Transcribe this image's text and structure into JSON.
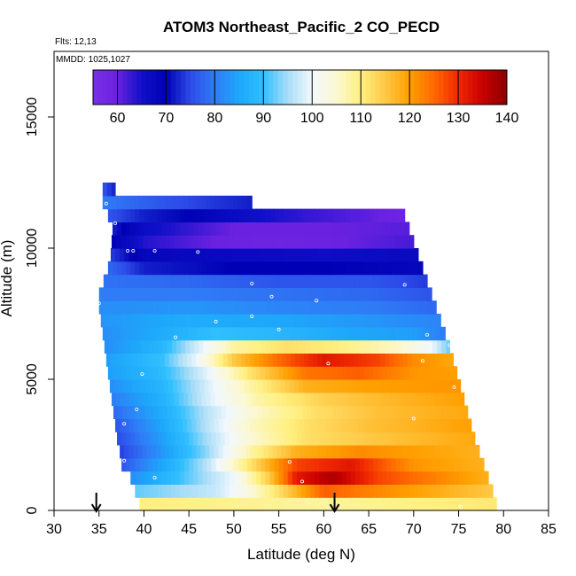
{
  "chart_data": {
    "type": "heatmap",
    "title": "ATOM3 Northeast_Pacific_2 CO_PECD",
    "flights_note": "Flts: 12,13",
    "dates_note": "MMDD: 1025,1027",
    "xlabel": "Latitude (deg N)",
    "ylabel": "Altitude (m)",
    "xlim": [
      30,
      85
    ],
    "ylim": [
      0,
      17500
    ],
    "x_ticks": [
      30,
      35,
      40,
      45,
      50,
      55,
      60,
      65,
      70,
      75,
      80,
      85
    ],
    "y_ticks": [
      0,
      5000,
      10000,
      15000
    ],
    "colorbar": {
      "min": 55,
      "max": 140,
      "ticks": [
        60,
        70,
        80,
        90,
        100,
        110,
        120,
        130,
        140
      ],
      "stops": [
        {
          "v": 55,
          "c": "#7a2fe6"
        },
        {
          "v": 60,
          "c": "#6a22e0"
        },
        {
          "v": 65,
          "c": "#1010c8"
        },
        {
          "v": 70,
          "c": "#0000b4"
        },
        {
          "v": 75,
          "c": "#2d4be8"
        },
        {
          "v": 80,
          "c": "#2f7cf6"
        },
        {
          "v": 85,
          "c": "#1ea7fa"
        },
        {
          "v": 90,
          "c": "#30bfff"
        },
        {
          "v": 95,
          "c": "#a9ddf7"
        },
        {
          "v": 100,
          "c": "#f2f8fd"
        },
        {
          "v": 105,
          "c": "#fbf8d2"
        },
        {
          "v": 110,
          "c": "#fff080"
        },
        {
          "v": 115,
          "c": "#ffc845"
        },
        {
          "v": 120,
          "c": "#ffa000"
        },
        {
          "v": 125,
          "c": "#ff6a00"
        },
        {
          "v": 130,
          "c": "#f02800"
        },
        {
          "v": 135,
          "c": "#c80000"
        },
        {
          "v": 140,
          "c": "#8b0000"
        }
      ]
    },
    "arrows_latitude": [
      34.7,
      61.2
    ],
    "bands": [
      {
        "alt": [
          0,
          500
        ],
        "lat": [
          39.5,
          79.2
        ],
        "pts": [
          [
            39.5,
            110
          ],
          [
            60,
            108
          ],
          [
            79.2,
            111
          ]
        ]
      },
      {
        "alt": [
          500,
          1000
        ],
        "lat": [
          39.0,
          78.8
        ],
        "pts": [
          [
            39,
            92
          ],
          [
            48,
            97
          ],
          [
            51,
            102
          ],
          [
            55,
            112
          ],
          [
            60,
            126
          ],
          [
            68,
            121
          ],
          [
            78.8,
            115
          ]
        ]
      },
      {
        "alt": [
          1000,
          1500
        ],
        "lat": [
          38.5,
          78.3
        ],
        "pts": [
          [
            38.5,
            82
          ],
          [
            45,
            92
          ],
          [
            50,
            100
          ],
          [
            54,
            115
          ],
          [
            57,
            132
          ],
          [
            61,
            137
          ],
          [
            66,
            128
          ],
          [
            78.3,
            118
          ]
        ]
      },
      {
        "alt": [
          1500,
          2000
        ],
        "lat": [
          37.5,
          77.8
        ],
        "pts": [
          [
            37.5,
            76
          ],
          [
            42,
            85
          ],
          [
            47,
            96
          ],
          [
            52,
            112
          ],
          [
            57,
            128
          ],
          [
            63,
            132
          ],
          [
            70,
            121
          ],
          [
            77.8,
            118
          ]
        ]
      },
      {
        "alt": [
          2000,
          2500
        ],
        "lat": [
          37.3,
          77.3
        ],
        "pts": [
          [
            37.3,
            74
          ],
          [
            42,
            83
          ],
          [
            47,
            94
          ],
          [
            52,
            108
          ],
          [
            57,
            118
          ],
          [
            64,
            122
          ],
          [
            70,
            120
          ],
          [
            77.3,
            118
          ]
        ]
      },
      {
        "alt": [
          2500,
          3000
        ],
        "lat": [
          37.0,
          76.8
        ],
        "pts": [
          [
            37,
            75
          ],
          [
            42,
            84
          ],
          [
            47,
            95
          ],
          [
            52,
            105
          ],
          [
            58,
            112
          ],
          [
            65,
            115
          ],
          [
            71,
            117
          ],
          [
            76.8,
            119
          ]
        ]
      },
      {
        "alt": [
          3000,
          3500
        ],
        "lat": [
          36.8,
          76.4
        ],
        "pts": [
          [
            36.8,
            76
          ],
          [
            42,
            85
          ],
          [
            47,
            96
          ],
          [
            52,
            106
          ],
          [
            58,
            112
          ],
          [
            65,
            116
          ],
          [
            71,
            118
          ],
          [
            76.4,
            120
          ]
        ]
      },
      {
        "alt": [
          3500,
          4000
        ],
        "lat": [
          36.6,
          76.0
        ],
        "pts": [
          [
            36.6,
            78
          ],
          [
            42,
            86
          ],
          [
            47,
            96
          ],
          [
            53,
            106
          ],
          [
            59,
            112
          ],
          [
            66,
            116
          ],
          [
            76,
            119
          ]
        ]
      },
      {
        "alt": [
          4000,
          4500
        ],
        "lat": [
          36.4,
          75.6
        ],
        "pts": [
          [
            36.4,
            80
          ],
          [
            42,
            87
          ],
          [
            47,
            98
          ],
          [
            53,
            108
          ],
          [
            60,
            114
          ],
          [
            67,
            117
          ],
          [
            75.6,
            120
          ]
        ]
      },
      {
        "alt": [
          4500,
          5000
        ],
        "lat": [
          36.2,
          75.2
        ],
        "pts": [
          [
            36.2,
            82
          ],
          [
            42,
            88
          ],
          [
            47,
            98
          ],
          [
            52,
            108
          ],
          [
            58,
            118
          ],
          [
            65,
            120
          ],
          [
            75.2,
            121
          ]
        ]
      },
      {
        "alt": [
          5000,
          5500
        ],
        "lat": [
          36.0,
          74.8
        ],
        "pts": [
          [
            36,
            84
          ],
          [
            42,
            89
          ],
          [
            47,
            99
          ],
          [
            52,
            112
          ],
          [
            58,
            124
          ],
          [
            64,
            126
          ],
          [
            70,
            121
          ],
          [
            74.8,
            120
          ]
        ]
      },
      {
        "alt": [
          5500,
          6000
        ],
        "lat": [
          35.8,
          74.4
        ],
        "pts": [
          [
            35.8,
            84
          ],
          [
            42,
            90
          ],
          [
            46,
            100
          ],
          [
            50,
            115
          ],
          [
            55,
            125
          ],
          [
            60,
            132
          ],
          [
            66,
            128
          ],
          [
            70,
            122
          ],
          [
            74.4,
            119
          ]
        ]
      },
      {
        "alt": [
          6000,
          6500
        ],
        "lat": [
          35.6,
          74.0
        ],
        "pts": [
          [
            35.6,
            82
          ],
          [
            42,
            88
          ],
          [
            46,
            98
          ],
          [
            50,
            108
          ],
          [
            56,
            112
          ],
          [
            62,
            110
          ],
          [
            68,
            106
          ],
          [
            72,
            100
          ],
          [
            74,
            92
          ]
        ]
      },
      {
        "alt": [
          6500,
          7000
        ],
        "lat": [
          35.4,
          73.5
        ],
        "pts": [
          [
            35.4,
            82
          ],
          [
            42,
            86
          ],
          [
            48,
            90
          ],
          [
            55,
            88
          ],
          [
            63,
            85
          ],
          [
            70,
            84
          ],
          [
            73.5,
            80
          ]
        ]
      },
      {
        "alt": [
          7000,
          7500
        ],
        "lat": [
          35.2,
          73.0
        ],
        "pts": [
          [
            35.2,
            83
          ],
          [
            45,
            86
          ],
          [
            55,
            85
          ],
          [
            65,
            83
          ],
          [
            73,
            81
          ]
        ]
      },
      {
        "alt": [
          7500,
          8000
        ],
        "lat": [
          35.0,
          72.5
        ],
        "pts": [
          [
            35,
            82
          ],
          [
            45,
            83
          ],
          [
            55,
            81
          ],
          [
            65,
            80
          ],
          [
            72.5,
            78
          ]
        ]
      },
      {
        "alt": [
          8000,
          8500
        ],
        "lat": [
          35.0,
          72.0
        ],
        "pts": [
          [
            35,
            80
          ],
          [
            45,
            80
          ],
          [
            55,
            79
          ],
          [
            65,
            78
          ],
          [
            72,
            76
          ]
        ]
      },
      {
        "alt": [
          8500,
          9000
        ],
        "lat": [
          35.5,
          71.5
        ],
        "pts": [
          [
            35.5,
            79
          ],
          [
            45,
            78
          ],
          [
            55,
            76
          ],
          [
            65,
            76
          ],
          [
            71.5,
            74
          ]
        ]
      },
      {
        "alt": [
          9000,
          9500
        ],
        "lat": [
          36.0,
          71.0
        ],
        "pts": [
          [
            36,
            78
          ],
          [
            40,
            72
          ],
          [
            50,
            70
          ],
          [
            60,
            70
          ],
          [
            71,
            68
          ]
        ]
      },
      {
        "alt": [
          9500,
          10000
        ],
        "lat": [
          36.3,
          70.5
        ],
        "pts": [
          [
            36.3,
            74
          ],
          [
            40,
            68
          ],
          [
            50,
            67
          ],
          [
            60,
            66
          ],
          [
            70.5,
            67
          ]
        ]
      },
      {
        "alt": [
          10000,
          10500
        ],
        "lat": [
          36.4,
          70.0
        ],
        "pts": [
          [
            36.4,
            70
          ],
          [
            40,
            64
          ],
          [
            48,
            60
          ],
          [
            55,
            59
          ],
          [
            62,
            60
          ],
          [
            70,
            62
          ]
        ]
      },
      {
        "alt": [
          10500,
          11000
        ],
        "lat": [
          36.5,
          69.5
        ],
        "pts": [
          [
            36.5,
            72
          ],
          [
            40,
            66
          ],
          [
            50,
            60
          ],
          [
            60,
            60
          ],
          [
            69.5,
            61
          ]
        ]
      },
      {
        "alt": [
          11000,
          11500
        ],
        "lat": [
          36.0,
          69.0
        ],
        "pts": [
          [
            36,
            76
          ],
          [
            40,
            72
          ],
          [
            45,
            70
          ],
          [
            51,
            66
          ],
          [
            58,
            63
          ],
          [
            64,
            61
          ],
          [
            69,
            59
          ]
        ]
      },
      {
        "alt": [
          11500,
          12000
        ],
        "lat": [
          35.4,
          52.0
        ],
        "pts": [
          [
            35.4,
            80
          ],
          [
            42,
            76
          ],
          [
            47,
            74
          ],
          [
            52,
            72
          ]
        ]
      },
      {
        "alt": [
          12000,
          12500
        ],
        "lat": [
          35.4,
          36.8
        ],
        "pts": [
          [
            35.4,
            76
          ],
          [
            36.8,
            72
          ]
        ]
      }
    ],
    "sample_points": [
      [
        35.8,
        11700
      ],
      [
        36.8,
        10950
      ],
      [
        38.2,
        9900
      ],
      [
        38.8,
        9900
      ],
      [
        41.2,
        9900
      ],
      [
        46.0,
        9850
      ],
      [
        35.0,
        7900
      ],
      [
        52.0,
        8650
      ],
      [
        54.2,
        8150
      ],
      [
        59.2,
        8000
      ],
      [
        69.0,
        8600
      ],
      [
        48.0,
        7200
      ],
      [
        52.0,
        7400
      ],
      [
        55.0,
        6900
      ],
      [
        43.5,
        6600
      ],
      [
        71.5,
        6700
      ],
      [
        74.0,
        6300
      ],
      [
        60.5,
        5600
      ],
      [
        71.0,
        5700
      ],
      [
        74.5,
        4700
      ],
      [
        39.8,
        5200
      ],
      [
        39.2,
        3850
      ],
      [
        37.8,
        3300
      ],
      [
        70.0,
        3500
      ],
      [
        37.8,
        1900
      ],
      [
        56.2,
        1850
      ],
      [
        57.6,
        1100
      ],
      [
        41.2,
        1250
      ],
      [
        75.2,
        150
      ]
    ]
  }
}
